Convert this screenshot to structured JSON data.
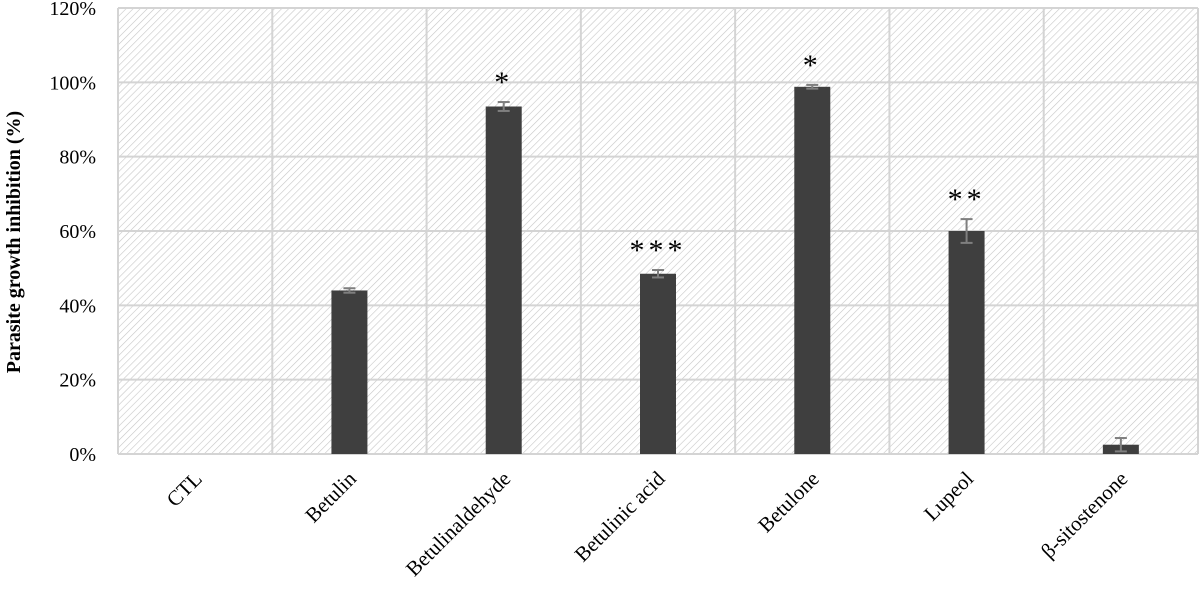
{
  "chart_data": {
    "type": "bar",
    "title": "",
    "xlabel": "",
    "ylabel": "Parasite growth inhibition  (%)",
    "categories": [
      "CTL",
      "Betulin",
      "Betulinaldehyde",
      "Betulinic acid",
      "Betulone",
      "Lupeol",
      "β-sitostenone"
    ],
    "values": [
      0,
      44,
      93.5,
      48.5,
      98.8,
      60,
      2.5
    ],
    "errors": [
      0,
      0.6,
      1.2,
      1,
      0.5,
      3.2,
      1.8
    ],
    "annotations": [
      "",
      "",
      "*",
      "***",
      "*",
      "**",
      ""
    ],
    "ylim": [
      0,
      120
    ],
    "yticks": [
      "0%",
      "20%",
      "40%",
      "60%",
      "80%",
      "100%",
      "120%"
    ],
    "ytick_values": [
      0,
      20,
      40,
      60,
      80,
      100,
      120
    ],
    "grid": true,
    "legend": "none",
    "colors": {
      "bar": "#3f3f3f",
      "grid": "#d4d4d4",
      "hatch": "#c6c6c6",
      "error": "#7f7f7f",
      "text": "#000000"
    }
  }
}
